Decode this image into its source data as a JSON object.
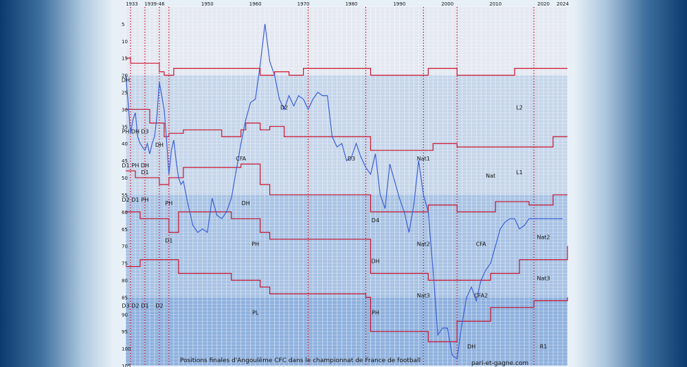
{
  "chart_data": {
    "type": "line",
    "title": "Positions finales d'Angoulême CFC dans le championnat de France de football",
    "credit": "pari-et-gagne.com",
    "x_tick_labels": [
      "1933",
      "1939-46",
      "1950",
      "1960",
      "1970",
      "1980",
      "1990",
      "2000",
      "2010",
      "2020",
      "2024"
    ],
    "y_tick_labels": [
      5,
      10,
      15,
      20,
      25,
      30,
      35,
      40,
      45,
      50,
      55,
      60,
      65,
      70,
      75,
      80,
      85,
      90,
      95,
      100,
      105
    ],
    "x_range": [
      1933,
      2025
    ],
    "y_range": [
      0,
      105
    ],
    "y_inverted": true,
    "colors": {
      "position_line": "#3b5fd6",
      "league_boundaries": "#d0142c",
      "grid": "#ffffff",
      "background_levels": [
        "#e4e8f1",
        "#c6d6ea",
        "#a9c3e4",
        "#8fb1de"
      ]
    },
    "levels": [
      {
        "label": "D1",
        "x": 1937,
        "y": 49
      },
      {
        "label": "L1",
        "x": 2015,
        "y": 49
      },
      {
        "label": "DH",
        "x": 1933,
        "y": 22
      },
      {
        "label": "L2",
        "x": 2015,
        "y": 30
      },
      {
        "label": "D2",
        "x": 1966,
        "y": 30
      },
      {
        "label": "PH",
        "x": 1933,
        "y": 37
      },
      {
        "label": "DH",
        "x": 1935,
        "y": 37
      },
      {
        "label": "D3",
        "x": 1937,
        "y": 37
      },
      {
        "label": "DH",
        "x": 1940,
        "y": 41
      },
      {
        "label": "CFA",
        "x": 1957,
        "y": 45
      },
      {
        "label": "D3",
        "x": 1980,
        "y": 45
      },
      {
        "label": "Nat1",
        "x": 1995,
        "y": 45
      },
      {
        "label": "D1",
        "x": 1933,
        "y": 47
      },
      {
        "label": "PH",
        "x": 1935,
        "y": 47
      },
      {
        "label": "DH",
        "x": 1937,
        "y": 47
      },
      {
        "label": "Nat",
        "x": 2009,
        "y": 50
      },
      {
        "label": "D2",
        "x": 1933,
        "y": 57
      },
      {
        "label": "D1",
        "x": 1935,
        "y": 57
      },
      {
        "label": "PH",
        "x": 1937,
        "y": 57
      },
      {
        "label": "PH",
        "x": 1942,
        "y": 58
      },
      {
        "label": "DH",
        "x": 1958,
        "y": 58
      },
      {
        "label": "D4",
        "x": 1985,
        "y": 63
      },
      {
        "label": "D1",
        "x": 1942,
        "y": 69
      },
      {
        "label": "PH",
        "x": 1960,
        "y": 70
      },
      {
        "label": "Nat2",
        "x": 1995,
        "y": 70
      },
      {
        "label": "CFA",
        "x": 2007,
        "y": 70
      },
      {
        "label": "Nat2",
        "x": 2020,
        "y": 68
      },
      {
        "label": "DH",
        "x": 1985,
        "y": 75
      },
      {
        "label": "Nat3",
        "x": 2020,
        "y": 80
      },
      {
        "label": "Nat3",
        "x": 1995,
        "y": 85
      },
      {
        "label": "CFA2",
        "x": 2007,
        "y": 85
      },
      {
        "label": "D3",
        "x": 1933,
        "y": 88
      },
      {
        "label": "D2",
        "x": 1935,
        "y": 88
      },
      {
        "label": "D1",
        "x": 1937,
        "y": 88
      },
      {
        "label": "D2",
        "x": 1940,
        "y": 88
      },
      {
        "label": "PL",
        "x": 1960,
        "y": 90
      },
      {
        "label": "PH",
        "x": 1985,
        "y": 90
      },
      {
        "label": "DH",
        "x": 2005,
        "y": 100
      },
      {
        "label": "R1",
        "x": 2020,
        "y": 100
      }
    ],
    "series": [
      {
        "x": [
          1933,
          1933.5,
          1934,
          1934.5,
          1935,
          1935.5,
          1936,
          1936.5,
          1937,
          1937.5,
          1938,
          1938.5,
          1939,
          1939.5,
          1940,
          1940.5,
          1941,
          1941.5,
          1942,
          1942.5,
          1943,
          1943.5,
          1944,
          1944.5,
          1945,
          1946,
          1947,
          1948,
          1949,
          1950,
          1951,
          1952,
          1953,
          1954,
          1955,
          1956,
          1957,
          1958,
          1959,
          1960,
          1961,
          1962,
          1963,
          1964,
          1965,
          1966,
          1967,
          1968,
          1969,
          1970,
          1971,
          1972,
          1973,
          1974,
          1975,
          1976,
          1977,
          1978,
          1979,
          1980,
          1981,
          1982,
          1983,
          1984,
          1985,
          1986,
          1987,
          1988,
          1989,
          1990,
          1991,
          1992,
          1993,
          1994,
          1995,
          1996,
          1997,
          1998,
          1999,
          2000,
          2001,
          2002,
          2003,
          2004,
          2005,
          2006,
          2007,
          2008,
          2009,
          2010,
          2011,
          2012,
          2013,
          2014,
          2015,
          2016,
          2017,
          2018,
          2019,
          2020,
          2021,
          2022,
          2023,
          2024
        ],
        "y": [
          20,
          28,
          37,
          33,
          31,
          38,
          40,
          41,
          42,
          40,
          43,
          40,
          38,
          32,
          22,
          26,
          30,
          39,
          49,
          42,
          39,
          45,
          50,
          52,
          51,
          58,
          64,
          66,
          65,
          66,
          56,
          61,
          62,
          60,
          56,
          48,
          40,
          33,
          28,
          27,
          17,
          5,
          16,
          20,
          27,
          30,
          26,
          29,
          26,
          27,
          30,
          27,
          25,
          26,
          26,
          38,
          41,
          40,
          45,
          44,
          40,
          44,
          47,
          49,
          43,
          55,
          59,
          46,
          51,
          56,
          60,
          66,
          58,
          45,
          55,
          60,
          77,
          96,
          94,
          94,
          102,
          103,
          93,
          85,
          82,
          86,
          80,
          77,
          75,
          70,
          65,
          63,
          62,
          62,
          65,
          64,
          62,
          62,
          62,
          62,
          62,
          62,
          62,
          62
        ]
      }
    ]
  }
}
